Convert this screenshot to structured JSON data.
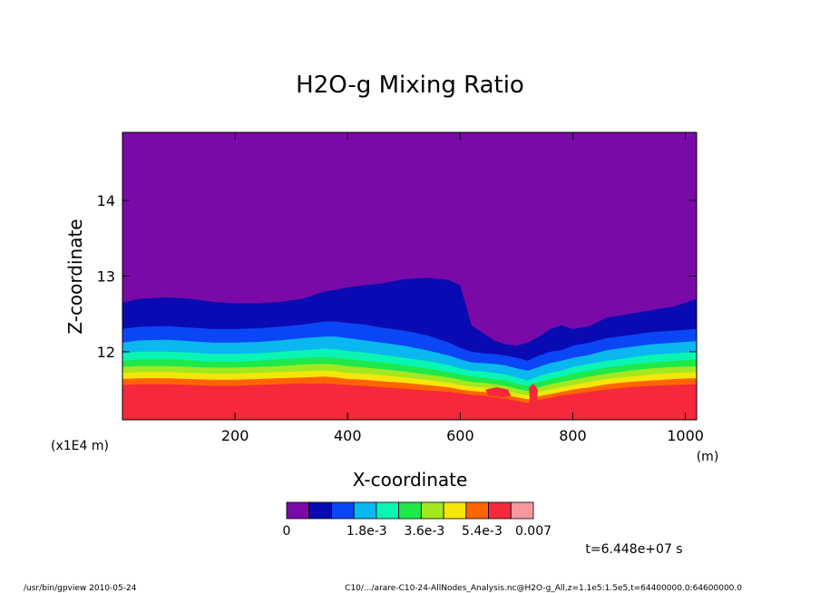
{
  "chart_data": {
    "type": "heatmap",
    "title": "H2O-g Mixing Ratio",
    "xlabel": "X-coordinate",
    "ylabel": "Z-coordinate",
    "x_unit": "(m)",
    "y_unit": "(x1E4 m)",
    "xlim": [
      0,
      1020
    ],
    "ylim": [
      11.1,
      14.9
    ],
    "x_ticks": [
      200,
      400,
      600,
      800,
      1000
    ],
    "y_ticks": [
      12,
      13,
      14
    ],
    "colorbar": {
      "levels": [
        0,
        0.0007,
        0.0014,
        0.0021,
        0.0028,
        0.0035,
        0.0042,
        0.0049,
        0.0056,
        0.0063,
        0.007
      ],
      "labels": [
        "0",
        "1.8e-3",
        "3.6e-3",
        "5.4e-3",
        "0.007"
      ],
      "label_positions": [
        0,
        0.0018,
        0.0036,
        0.0054,
        0.007
      ],
      "colors": [
        "#7a0aa8",
        "#0a0ab2",
        "#0a46f5",
        "#0ab7ee",
        "#0af5b4",
        "#1fe84a",
        "#a3e81f",
        "#f5e60a",
        "#ff6400",
        "#f5283c",
        "#f598a0"
      ]
    },
    "boundaries": {
      "x": [
        0,
        30,
        80,
        120,
        160,
        200,
        240,
        280,
        320,
        360,
        380,
        400,
        430,
        460,
        500,
        540,
        580,
        600,
        620,
        640,
        660,
        680,
        700,
        720,
        740,
        760,
        780,
        800,
        830,
        860,
        900,
        940,
        980,
        1020
      ],
      "z": [
        [
          12.65,
          12.7,
          12.72,
          12.7,
          12.66,
          12.64,
          12.64,
          12.66,
          12.7,
          12.8,
          12.82,
          12.85,
          12.88,
          12.9,
          12.96,
          12.98,
          12.95,
          12.88,
          12.35,
          12.25,
          12.15,
          12.1,
          12.08,
          12.12,
          12.2,
          12.3,
          12.35,
          12.3,
          12.34,
          12.45,
          12.5,
          12.55,
          12.6,
          12.7
        ],
        [
          12.3,
          12.33,
          12.34,
          12.32,
          12.3,
          12.3,
          12.31,
          12.33,
          12.36,
          12.4,
          12.4,
          12.38,
          12.36,
          12.32,
          12.28,
          12.22,
          12.12,
          12.05,
          12.0,
          11.98,
          11.97,
          11.95,
          11.92,
          11.88,
          11.95,
          12.0,
          12.02,
          12.08,
          12.12,
          12.18,
          12.22,
          12.26,
          12.28,
          12.3
        ],
        [
          12.12,
          12.15,
          12.16,
          12.14,
          12.12,
          12.12,
          12.13,
          12.15,
          12.18,
          12.2,
          12.2,
          12.18,
          12.15,
          12.12,
          12.08,
          12.02,
          11.95,
          11.9,
          11.86,
          11.85,
          11.84,
          11.82,
          11.78,
          11.75,
          11.8,
          11.85,
          11.88,
          11.92,
          11.96,
          12.02,
          12.06,
          12.1,
          12.12,
          12.14
        ],
        [
          11.98,
          12.0,
          12.0,
          11.99,
          11.97,
          11.97,
          11.98,
          12.0,
          12.02,
          12.04,
          12.03,
          12.01,
          11.99,
          11.96,
          11.92,
          11.88,
          11.82,
          11.78,
          11.75,
          11.74,
          11.72,
          11.7,
          11.66,
          11.62,
          11.68,
          11.72,
          11.75,
          11.8,
          11.84,
          11.88,
          11.92,
          11.96,
          11.98,
          12.0
        ],
        [
          11.88,
          11.9,
          11.9,
          11.89,
          11.87,
          11.87,
          11.88,
          11.9,
          11.92,
          11.93,
          11.92,
          11.9,
          11.88,
          11.86,
          11.82,
          11.78,
          11.73,
          11.7,
          11.67,
          11.66,
          11.64,
          11.62,
          11.58,
          11.55,
          11.6,
          11.64,
          11.67,
          11.71,
          11.75,
          11.79,
          11.83,
          11.86,
          11.88,
          11.9
        ],
        [
          11.8,
          11.81,
          11.81,
          11.8,
          11.79,
          11.79,
          11.8,
          11.81,
          11.83,
          11.84,
          11.83,
          11.81,
          11.79,
          11.77,
          11.74,
          11.7,
          11.66,
          11.63,
          11.6,
          11.59,
          11.57,
          11.55,
          11.51,
          11.48,
          11.53,
          11.57,
          11.6,
          11.63,
          11.67,
          11.71,
          11.75,
          11.78,
          11.8,
          11.81
        ],
        [
          11.72,
          11.73,
          11.73,
          11.72,
          11.71,
          11.71,
          11.72,
          11.73,
          11.74,
          11.75,
          11.74,
          11.72,
          11.71,
          11.69,
          11.66,
          11.63,
          11.59,
          11.56,
          11.54,
          11.53,
          11.51,
          11.49,
          11.45,
          11.42,
          11.47,
          11.5,
          11.53,
          11.56,
          11.6,
          11.64,
          11.67,
          11.7,
          11.72,
          11.73
        ],
        [
          11.64,
          11.65,
          11.65,
          11.64,
          11.63,
          11.63,
          11.64,
          11.65,
          11.66,
          11.67,
          11.66,
          11.64,
          11.63,
          11.61,
          11.59,
          11.56,
          11.53,
          11.5,
          11.48,
          11.47,
          11.45,
          11.43,
          11.4,
          11.37,
          11.41,
          11.44,
          11.47,
          11.5,
          11.53,
          11.57,
          11.6,
          11.62,
          11.64,
          11.65
        ],
        [
          11.56,
          11.57,
          11.57,
          11.56,
          11.55,
          11.55,
          11.56,
          11.57,
          11.58,
          11.58,
          11.57,
          11.56,
          11.55,
          11.53,
          11.51,
          11.49,
          11.47,
          11.45,
          11.43,
          11.42,
          11.4,
          11.38,
          11.35,
          11.32,
          11.36,
          11.39,
          11.42,
          11.44,
          11.47,
          11.5,
          11.53,
          11.55,
          11.56,
          11.57
        ]
      ]
    },
    "red_patches": [
      {
        "x": [
          645,
          665,
          685,
          690,
          675,
          650
        ],
        "z": [
          11.5,
          11.53,
          11.5,
          11.42,
          11.4,
          11.42
        ]
      },
      {
        "x": [
          722,
          730,
          738,
          736,
          724
        ],
        "z": [
          11.52,
          11.58,
          11.5,
          11.32,
          11.32
        ]
      }
    ],
    "annotation": "t=6.448e+07 s"
  },
  "footer": {
    "left": "/usr/bin/gpview  2010-05-24",
    "right": "C10/.../arare-C10-24-AllNodes_Analysis.nc@H2O-g_All,z=1.1e5:1.5e5,t=64400000.0:64600000.0"
  }
}
